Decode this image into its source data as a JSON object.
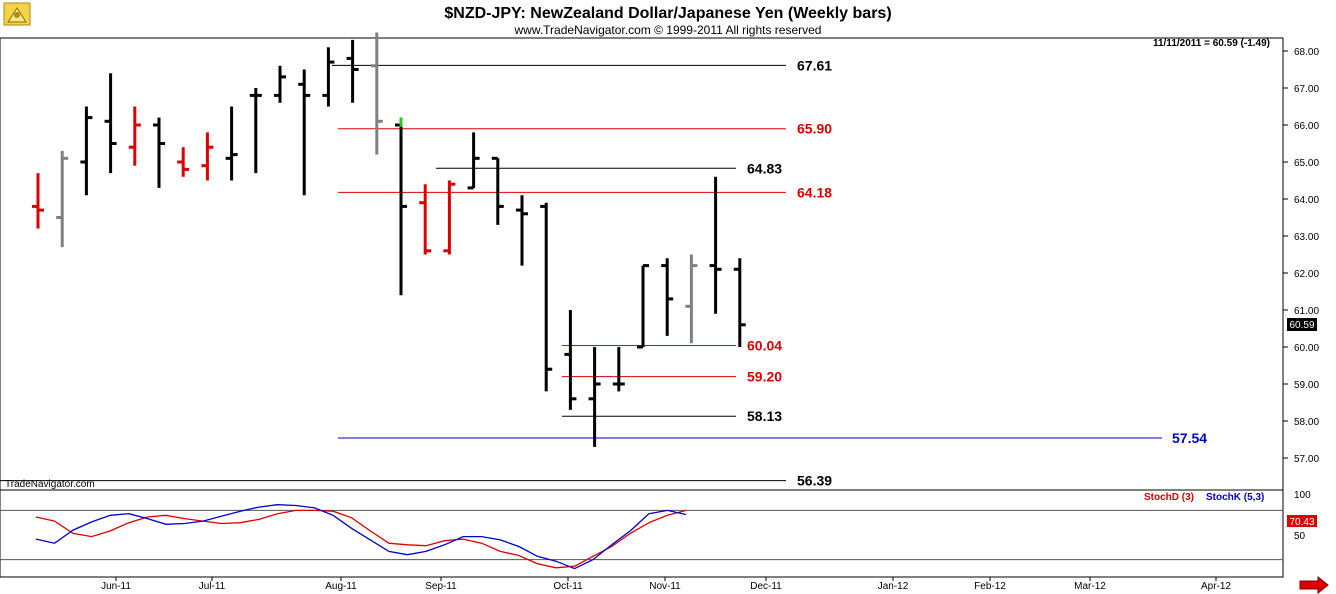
{
  "title": "$NZD-JPY:  NewZealand Dollar/Japanese Yen  (Weekly bars)",
  "subtitle": "www.TradeNavigator.com © 1999-2011 All rights reserved",
  "quote_readout": "11/11/2011 = 60.59 (-1.49)",
  "watermark": "TradeNavigator.com",
  "last_price_tag": "60.59",
  "stoch_current_tag": "70.43",
  "colors": {
    "up_bar": "#000000",
    "down_bar": "#dd0000",
    "neutral_bar": "#808080",
    "black_level": "#000000",
    "red_level": "#dd0000",
    "blue_level": "#0000cc",
    "stoch_d": "#dd0000",
    "stoch_k": "#0000cc",
    "arrow": "#dd0000"
  },
  "chart_data": [
    {
      "type": "ohlc",
      "title": "$NZD-JPY:  NewZealand Dollar/Japanese Yen  (Weekly bars)",
      "y_ticks": [
        "57.00",
        "58.00",
        "59.00",
        "60.00",
        "61.00",
        "62.00",
        "63.00",
        "64.00",
        "65.00",
        "66.00",
        "67.00",
        "68.00"
      ],
      "ylim": [
        56.2,
        68.5
      ],
      "x_labels": [
        "Jun-11",
        "Jul-11",
        "Aug-11",
        "Sep-11",
        "Oct-11",
        "Nov-11",
        "Dec-11",
        "Jan-12",
        "Feb-12",
        "Mar-12",
        "Apr-12"
      ],
      "bars": [
        {
          "week": 1,
          "open": 63.8,
          "high": 64.7,
          "low": 63.2,
          "close": 63.7,
          "color": "red"
        },
        {
          "week": 2,
          "open": 63.5,
          "high": 65.3,
          "low": 62.7,
          "close": 65.1,
          "color": "gray"
        },
        {
          "week": 3,
          "open": 65.0,
          "high": 66.5,
          "low": 64.1,
          "close": 66.2,
          "color": "black"
        },
        {
          "week": 4,
          "open": 66.1,
          "high": 67.4,
          "low": 64.7,
          "close": 65.5,
          "color": "black"
        },
        {
          "week": 5,
          "open": 65.4,
          "high": 66.5,
          "low": 64.9,
          "close": 66.0,
          "color": "red"
        },
        {
          "week": 6,
          "open": 66.0,
          "high": 66.2,
          "low": 64.3,
          "close": 65.5,
          "color": "black"
        },
        {
          "week": 7,
          "open": 65.0,
          "high": 65.4,
          "low": 64.6,
          "close": 64.8,
          "color": "red"
        },
        {
          "week": 8,
          "open": 64.9,
          "high": 65.8,
          "low": 64.5,
          "close": 65.4,
          "color": "red"
        },
        {
          "week": 9,
          "open": 65.1,
          "high": 66.5,
          "low": 64.5,
          "close": 65.2,
          "color": "black"
        },
        {
          "week": 10,
          "open": 66.8,
          "high": 67.0,
          "low": 64.7,
          "close": 66.8,
          "color": "black"
        },
        {
          "week": 11,
          "open": 66.8,
          "high": 67.6,
          "low": 66.6,
          "close": 67.3,
          "color": "black"
        },
        {
          "week": 12,
          "open": 67.1,
          "high": 67.5,
          "low": 64.1,
          "close": 66.8,
          "color": "black"
        },
        {
          "week": 13,
          "open": 66.8,
          "high": 68.1,
          "low": 66.5,
          "close": 67.7,
          "color": "black"
        },
        {
          "week": 14,
          "open": 67.8,
          "high": 68.3,
          "low": 66.6,
          "close": 67.5,
          "color": "black"
        },
        {
          "week": 15,
          "open": 67.6,
          "high": 68.5,
          "low": 65.2,
          "close": 66.1,
          "color": "gray"
        },
        {
          "week": 16,
          "open": 66.0,
          "high": 66.2,
          "low": 61.4,
          "close": 63.8,
          "color": "black"
        },
        {
          "week": 17,
          "open": 63.9,
          "high": 64.4,
          "low": 62.5,
          "close": 62.6,
          "color": "red"
        },
        {
          "week": 18,
          "open": 62.6,
          "high": 64.5,
          "low": 62.5,
          "close": 64.4,
          "color": "red"
        },
        {
          "week": 19,
          "open": 64.3,
          "high": 65.8,
          "low": 64.3,
          "close": 65.1,
          "color": "black"
        },
        {
          "week": 20,
          "open": 65.1,
          "high": 65.1,
          "low": 63.3,
          "close": 63.8,
          "color": "black"
        },
        {
          "week": 21,
          "open": 63.7,
          "high": 64.1,
          "low": 62.2,
          "close": 63.6,
          "color": "black"
        },
        {
          "week": 22,
          "open": 63.8,
          "high": 63.9,
          "low": 58.8,
          "close": 59.4,
          "color": "black"
        },
        {
          "week": 23,
          "open": 59.8,
          "high": 61.0,
          "low": 58.3,
          "close": 58.6,
          "color": "black"
        },
        {
          "week": 24,
          "open": 58.6,
          "high": 60.0,
          "low": 57.3,
          "close": 59.0,
          "color": "black"
        },
        {
          "week": 25,
          "open": 59.0,
          "high": 60.0,
          "low": 58.8,
          "close": 59.0,
          "color": "black"
        },
        {
          "week": 26,
          "open": 60.0,
          "high": 62.2,
          "low": 60.0,
          "close": 62.2,
          "color": "black"
        },
        {
          "week": 27,
          "open": 62.2,
          "high": 62.4,
          "low": 60.3,
          "close": 61.3,
          "color": "black"
        },
        {
          "week": 28,
          "open": 61.1,
          "high": 62.5,
          "low": 60.1,
          "close": 62.2,
          "color": "gray"
        },
        {
          "week": 29,
          "open": 62.2,
          "high": 64.6,
          "low": 60.9,
          "close": 62.1,
          "color": "black"
        },
        {
          "week": 30,
          "open": 62.1,
          "high": 62.4,
          "low": 60.0,
          "close": 60.6,
          "color": "black"
        }
      ],
      "levels": [
        {
          "value": 67.61,
          "label": "67.61",
          "color": "black"
        },
        {
          "value": 65.9,
          "label": "65.90",
          "color": "red"
        },
        {
          "value": 64.83,
          "label": "64.83",
          "color": "black"
        },
        {
          "value": 64.18,
          "label": "64.18",
          "color": "red"
        },
        {
          "value": 60.04,
          "label": "60.04",
          "color": "red"
        },
        {
          "value": 59.2,
          "label": "59.20",
          "color": "red"
        },
        {
          "value": 58.13,
          "label": "58.13",
          "color": "black"
        },
        {
          "value": 57.54,
          "label": "57.54",
          "color": "blue"
        },
        {
          "value": 56.39,
          "label": "56.39",
          "color": "black"
        }
      ]
    },
    {
      "type": "line",
      "y_ticks": [
        "100",
        "50"
      ],
      "ylim": [
        0,
        110
      ],
      "reference_lines": [
        80,
        20
      ],
      "series": [
        {
          "name": "StochD (3)",
          "color": "red",
          "values": [
            72,
            67,
            52,
            48,
            55,
            65,
            72,
            74,
            70,
            67,
            64,
            65,
            69,
            76,
            80,
            80,
            79,
            71,
            55,
            40,
            38,
            37,
            43,
            45,
            40,
            30,
            25,
            15,
            10,
            12,
            24,
            36,
            52,
            65,
            74,
            80
          ]
        },
        {
          "name": "StochK (5,3)",
          "color": "blue",
          "values": [
            45,
            40,
            56,
            66,
            74,
            76,
            70,
            63,
            64,
            67,
            73,
            79,
            84,
            87,
            86,
            83,
            74,
            58,
            44,
            30,
            26,
            30,
            38,
            48,
            48,
            44,
            36,
            24,
            18,
            9,
            20,
            38,
            55,
            76,
            80,
            75
          ]
        }
      ]
    }
  ]
}
